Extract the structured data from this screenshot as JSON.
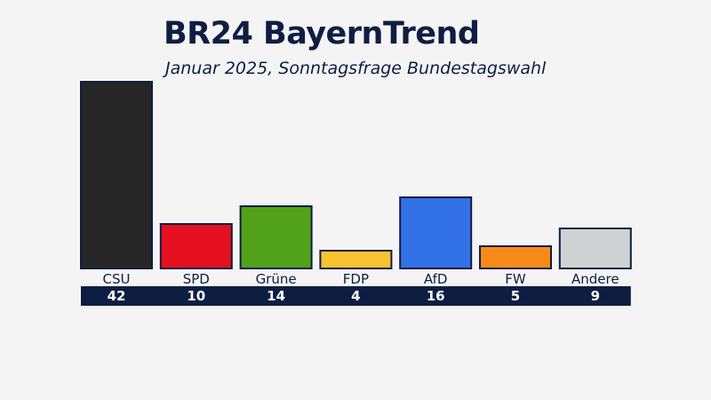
{
  "header": {
    "title": "BR24 BayernTrend",
    "subtitle": "Januar 2025, Sonntagsfrage Bundestagswahl"
  },
  "colors": {
    "navy": "#0e1e43",
    "background": "#f4f4f4"
  },
  "chart_data": {
    "type": "bar",
    "title": "BR24 BayernTrend",
    "subtitle": "Januar 2025, Sonntagsfrage Bundestagswahl",
    "categories": [
      "CSU",
      "SPD",
      "Grüne",
      "FDP",
      "AfD",
      "FW",
      "Andere"
    ],
    "values": [
      42,
      10,
      14,
      4,
      16,
      5,
      9
    ],
    "value_labels": [
      "42",
      "10",
      "14",
      "4",
      "16",
      "5",
      "9"
    ],
    "colors": [
      "#262626",
      "#e4101f",
      "#52a11a",
      "#f7c331",
      "#3271e6",
      "#f98a1a",
      "#cfd2d3"
    ],
    "ylim": [
      0,
      42
    ],
    "grid": false,
    "legend": "none"
  }
}
